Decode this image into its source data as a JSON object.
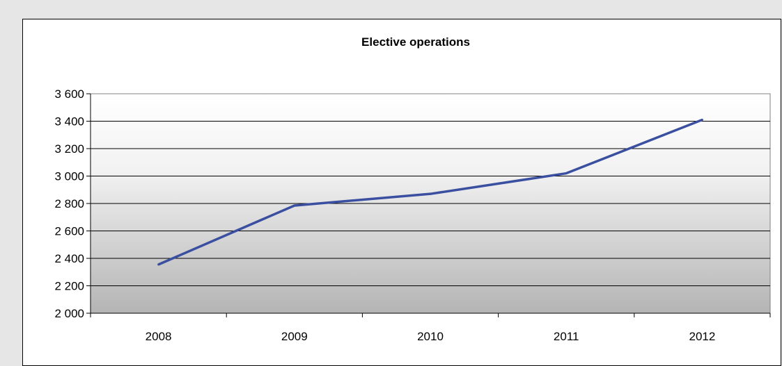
{
  "chart_data": {
    "type": "line",
    "title": "Elective operations",
    "xlabel": "",
    "ylabel": "",
    "categories": [
      "2008",
      "2009",
      "2010",
      "2011",
      "2012"
    ],
    "series": [
      {
        "values": [
          2355,
          2785,
          2870,
          3020,
          3410
        ]
      }
    ],
    "ylim": [
      2000,
      3600
    ],
    "yticks": [
      2000,
      2200,
      2400,
      2600,
      2800,
      3000,
      3200,
      3400,
      3600
    ],
    "ytick_labels": [
      "2 000",
      "2 200",
      "2 400",
      "2 600",
      "2 800",
      "3 000",
      "3 200",
      "3 400",
      "3 600"
    ],
    "grid": true,
    "legend": "none",
    "line_color": "#3a4fa0"
  }
}
